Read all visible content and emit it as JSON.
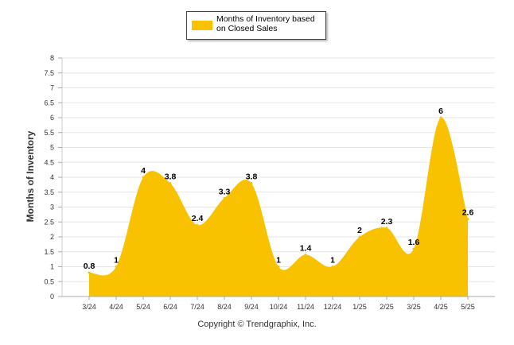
{
  "chart_data": {
    "type": "area",
    "title": "",
    "ylabel": "Months of Inventory",
    "xlabel": "",
    "ylim": [
      0,
      8
    ],
    "y_ticks": [
      "0",
      "0.5",
      "1",
      "1.5",
      "2",
      "2.5",
      "3",
      "3.5",
      "4",
      "4.5",
      "5",
      "5.5",
      "6",
      "6.5",
      "7",
      "7.5",
      "8"
    ],
    "categories": [
      "3/24",
      "4/24",
      "5/24",
      "6/24",
      "7/24",
      "8/24",
      "9/24",
      "10/24",
      "11/24",
      "12/24",
      "1/25",
      "2/25",
      "3/25",
      "4/25",
      "5/25"
    ],
    "series": [
      {
        "name": "Months of Inventory based on Closed Sales",
        "values": [
          0.8,
          1,
          4,
          3.8,
          2.4,
          3.3,
          3.8,
          1,
          1.4,
          1,
          2,
          2.3,
          1.6,
          6,
          2.6
        ],
        "labels": [
          "0.8",
          "1",
          "4",
          "3.8",
          "2.4",
          "3.3",
          "3.8",
          "1",
          "1.4",
          "1",
          "2",
          "2.3",
          "1.6",
          "6",
          "2.6"
        ],
        "color": "#F8C200"
      }
    ],
    "legend": "top-center",
    "grid": true,
    "smooth": true
  },
  "legend": {
    "label": "Months of Inventory based on Closed Sales"
  },
  "footer": {
    "copyright": "Copyright © Trendgraphix, Inc."
  }
}
